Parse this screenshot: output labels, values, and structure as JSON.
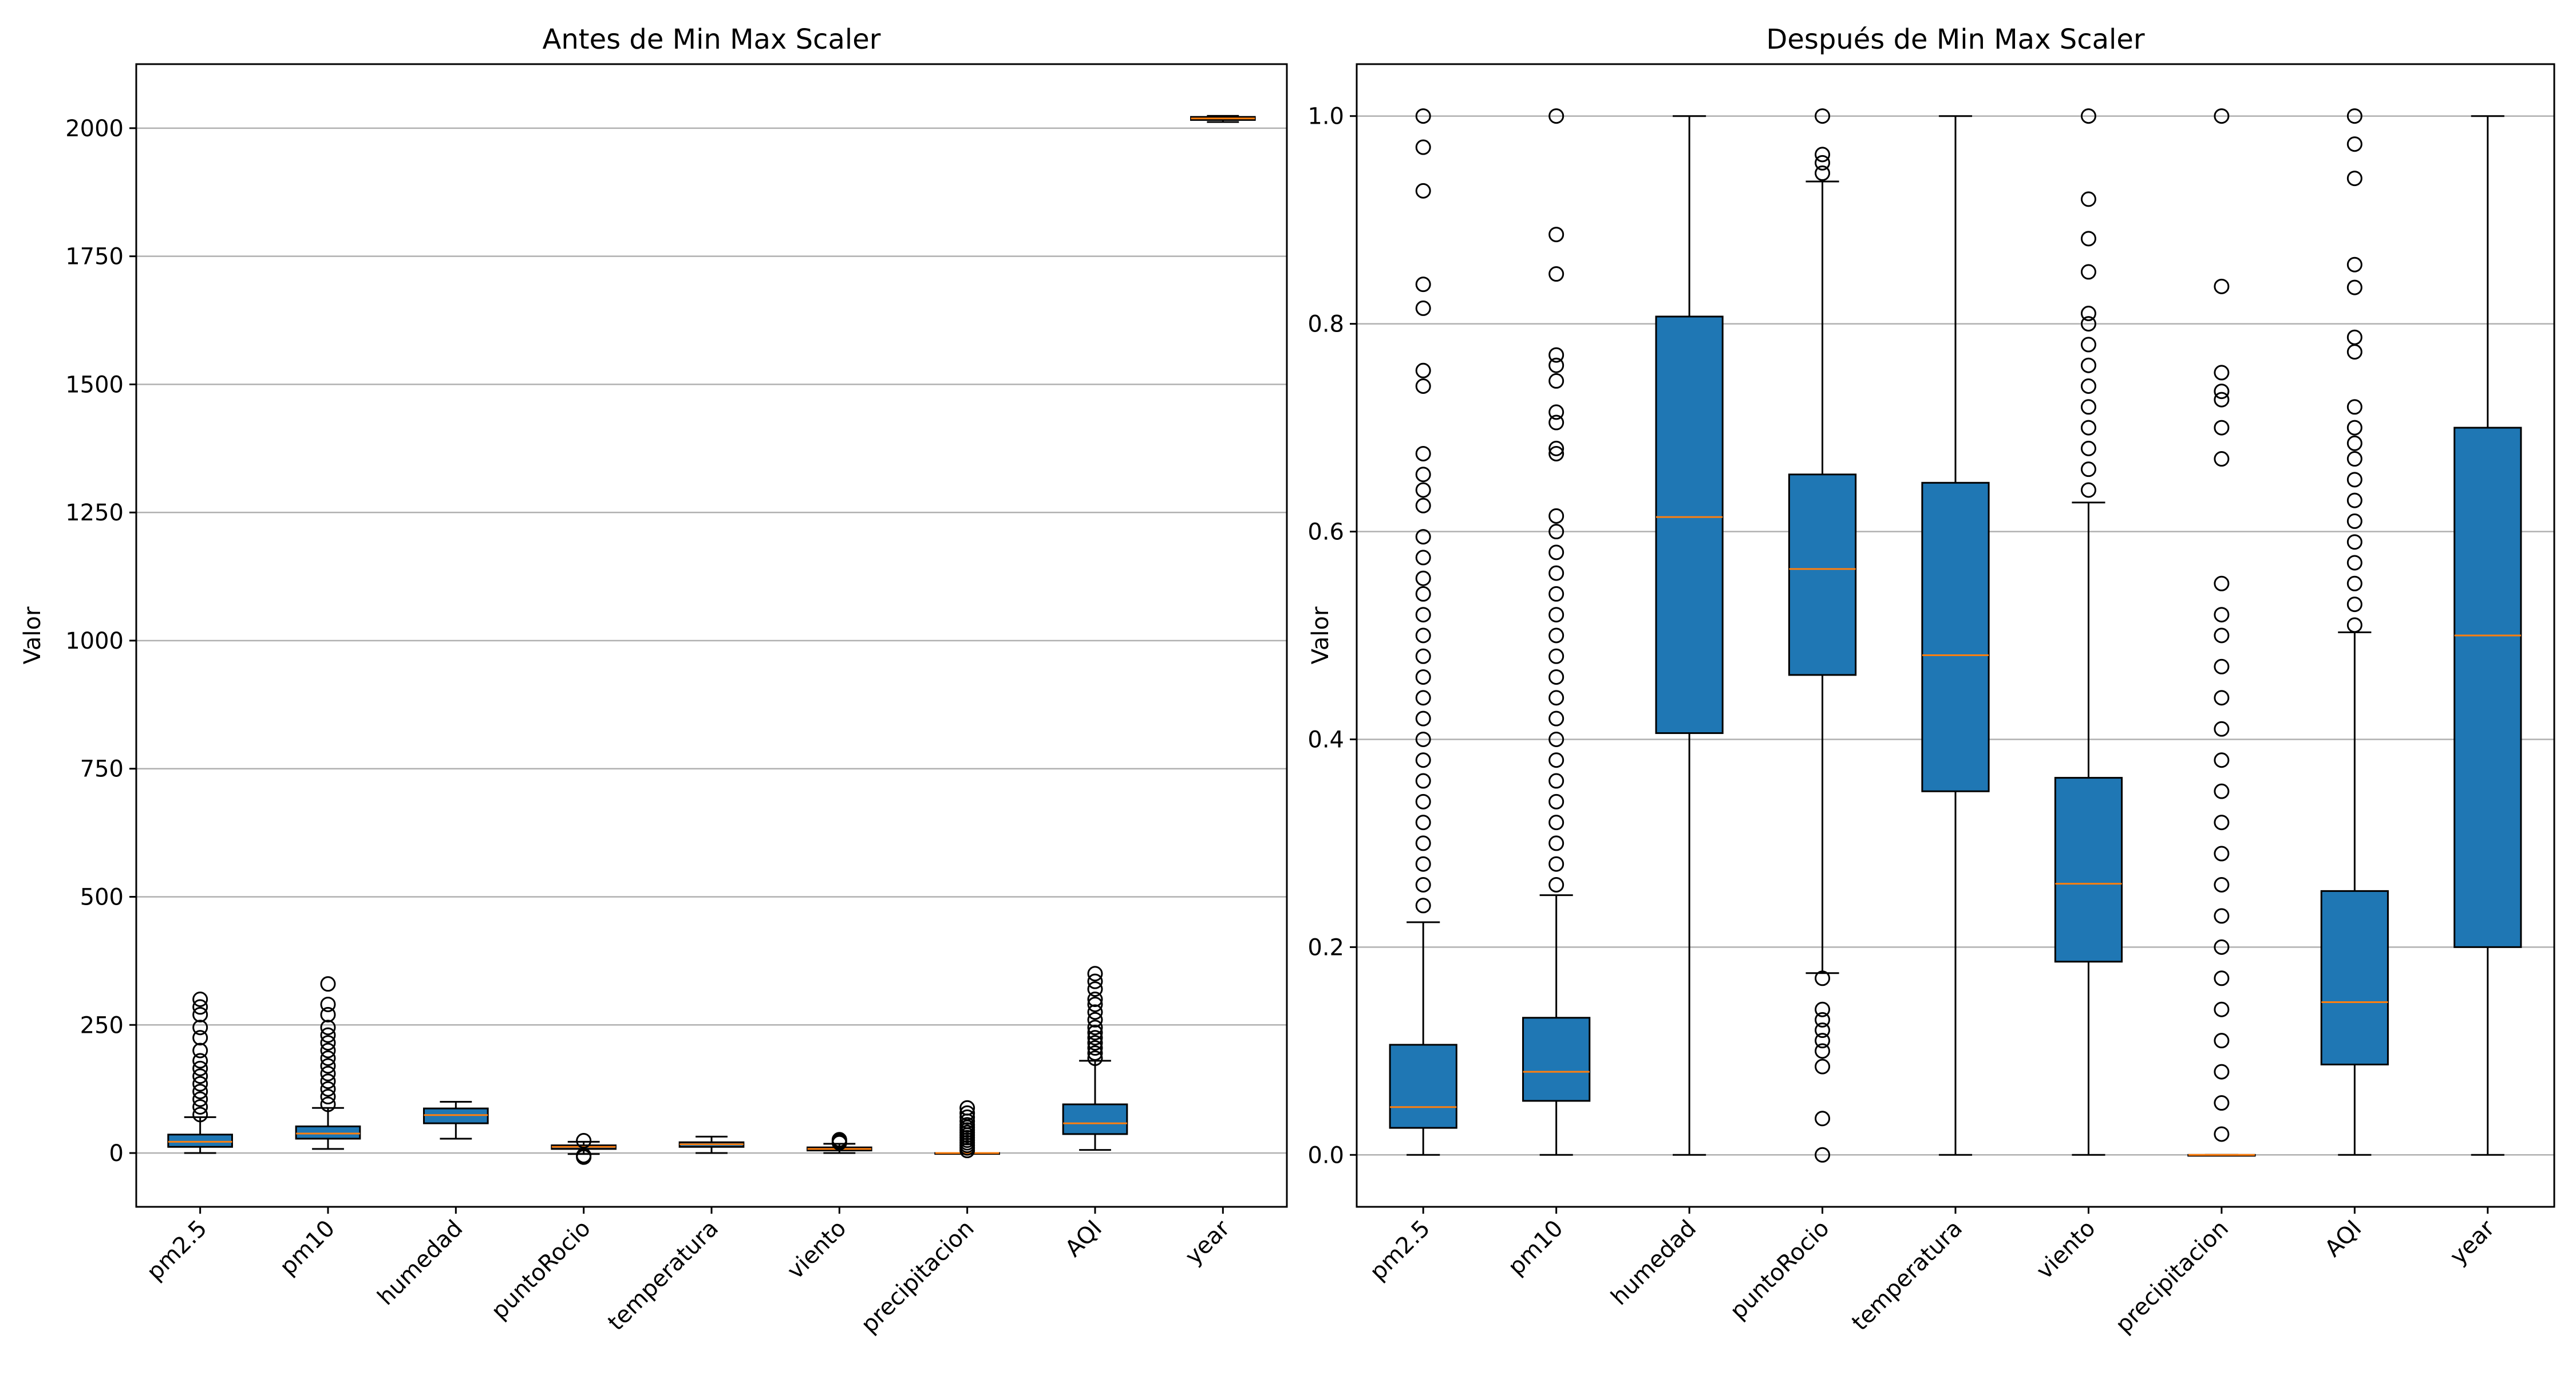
{
  "chart_data": [
    {
      "type": "box",
      "title": "Antes de Min Max Scaler",
      "xlabel": "",
      "ylabel": "Valor",
      "ylim": [
        -105,
        2125
      ],
      "yticks": [
        0,
        250,
        500,
        750,
        1000,
        1250,
        1500,
        1750,
        2000
      ],
      "grid": "y",
      "categories": [
        "pm2.5",
        "pm10",
        "humedad",
        "puntoRocio",
        "temperatura",
        "viento",
        "precipitacion",
        "AQI",
        "year"
      ],
      "boxes": [
        {
          "q1": 12,
          "median": 22,
          "q3": 36,
          "whisker_low": 0,
          "whisker_high": 70,
          "outliers_high": [
            75,
            90,
            105,
            120,
            135,
            150,
            165,
            180,
            200,
            225,
            245,
            270,
            285,
            300
          ]
        },
        {
          "q1": 28,
          "median": 38,
          "q3": 52,
          "whisker_low": 8,
          "whisker_high": 88,
          "outliers_high": [
            95,
            110,
            125,
            140,
            155,
            170,
            185,
            200,
            215,
            230,
            245,
            270,
            290,
            330
          ]
        },
        {
          "q1": 58,
          "median": 74,
          "q3": 87,
          "whisker_low": 28,
          "whisker_high": 100,
          "outliers_high": []
        },
        {
          "q1": 8,
          "median": 12,
          "q3": 15,
          "whisker_low": -2,
          "whisker_high": 22,
          "outliers_high": [
            24
          ],
          "outliers_low": [
            -5,
            -8
          ]
        },
        {
          "q1": 12,
          "median": 17,
          "q3": 21,
          "whisker_low": 0,
          "whisker_high": 32,
          "outliers_high": []
        },
        {
          "q1": 5,
          "median": 8,
          "q3": 11,
          "whisker_low": 0,
          "whisker_high": 18,
          "outliers_high": [
            20,
            23,
            26
          ]
        },
        {
          "q1": 0,
          "median": 0,
          "q3": 0,
          "whisker_low": 0,
          "whisker_high": 0,
          "outliers_high": [
            5,
            10,
            15,
            20,
            25,
            30,
            35,
            40,
            45,
            50,
            55,
            62,
            70,
            78,
            88
          ]
        },
        {
          "q1": 37,
          "median": 58,
          "q3": 95,
          "whisker_low": 6,
          "whisker_high": 180,
          "outliers_high": [
            185,
            195,
            205,
            215,
            225,
            235,
            245,
            260,
            275,
            290,
            300,
            320,
            335,
            350
          ]
        },
        {
          "q1": 2016,
          "median": 2019,
          "q3": 2022,
          "whisker_low": 2012,
          "whisker_high": 2024,
          "outliers_high": []
        }
      ]
    },
    {
      "type": "box",
      "title": "Después de Min Max Scaler",
      "xlabel": "",
      "ylabel": "Valor",
      "ylim": [
        -0.05,
        1.05
      ],
      "yticks": [
        0.0,
        0.2,
        0.4,
        0.6,
        0.8,
        1.0
      ],
      "grid": "y",
      "categories": [
        "pm2.5",
        "pm10",
        "humedad",
        "puntoRocio",
        "temperatura",
        "viento",
        "precipitacion",
        "AQI",
        "year"
      ],
      "boxes": [
        {
          "q1": 0.026,
          "median": 0.046,
          "q3": 0.106,
          "whisker_low": 0.0,
          "whisker_high": 0.224,
          "outliers_high": [
            0.24,
            0.26,
            0.28,
            0.3,
            0.32,
            0.34,
            0.36,
            0.38,
            0.4,
            0.42,
            0.44,
            0.46,
            0.48,
            0.5,
            0.52,
            0.54,
            0.555,
            0.575,
            0.595,
            0.625,
            0.64,
            0.655,
            0.675,
            0.74,
            0.755,
            0.815,
            0.838,
            0.928,
            0.97,
            1.0
          ]
        },
        {
          "q1": 0.052,
          "median": 0.08,
          "q3": 0.132,
          "whisker_low": 0.0,
          "whisker_high": 0.25,
          "outliers_high": [
            0.26,
            0.28,
            0.3,
            0.32,
            0.34,
            0.36,
            0.38,
            0.4,
            0.42,
            0.44,
            0.46,
            0.48,
            0.5,
            0.52,
            0.54,
            0.56,
            0.58,
            0.6,
            0.615,
            0.675,
            0.68,
            0.705,
            0.715,
            0.745,
            0.76,
            0.77,
            0.848,
            0.886,
            1.0
          ]
        },
        {
          "q1": 0.406,
          "median": 0.614,
          "q3": 0.807,
          "whisker_low": 0.0,
          "whisker_high": 1.0,
          "outliers_high": []
        },
        {
          "q1": 0.462,
          "median": 0.564,
          "q3": 0.655,
          "whisker_low": 0.175,
          "whisker_high": 0.937,
          "outliers_high": [
            0.945,
            0.955,
            0.963,
            1.0
          ],
          "outliers_low": [
            0.0,
            0.035,
            0.085,
            0.1,
            0.11,
            0.12,
            0.13,
            0.14,
            0.17
          ]
        },
        {
          "q1": 0.35,
          "median": 0.481,
          "q3": 0.647,
          "whisker_low": 0.0,
          "whisker_high": 1.0,
          "outliers_high": []
        },
        {
          "q1": 0.186,
          "median": 0.261,
          "q3": 0.363,
          "whisker_low": 0.0,
          "whisker_high": 0.628,
          "outliers_high": [
            0.64,
            0.66,
            0.68,
            0.7,
            0.72,
            0.74,
            0.76,
            0.78,
            0.8,
            0.81,
            0.85,
            0.882,
            0.92,
            1.0
          ]
        },
        {
          "q1": 0.0,
          "median": 0.0,
          "q3": 0.0,
          "whisker_low": 0.0,
          "whisker_high": 0.0,
          "outliers_high": [
            0.02,
            0.05,
            0.08,
            0.11,
            0.14,
            0.17,
            0.2,
            0.23,
            0.26,
            0.29,
            0.32,
            0.35,
            0.38,
            0.41,
            0.44,
            0.47,
            0.5,
            0.52,
            0.55,
            0.67,
            0.7,
            0.727,
            0.735,
            0.753,
            0.836,
            1.0
          ]
        },
        {
          "q1": 0.087,
          "median": 0.147,
          "q3": 0.254,
          "whisker_low": 0.0,
          "whisker_high": 0.503,
          "outliers_high": [
            0.51,
            0.53,
            0.55,
            0.57,
            0.59,
            0.61,
            0.63,
            0.65,
            0.67,
            0.685,
            0.7,
            0.72,
            0.773,
            0.787,
            0.835,
            0.857,
            0.94,
            0.973,
            1.0
          ]
        },
        {
          "q1": 0.2,
          "median": 0.5,
          "q3": 0.7,
          "whisker_low": 0.0,
          "whisker_high": 1.0,
          "outliers_high": []
        }
      ]
    }
  ],
  "colors": {
    "box_fill": "#1f77b4",
    "median": "#ff7f0e",
    "grid": "#b0b0b0",
    "axis": "#000000"
  }
}
